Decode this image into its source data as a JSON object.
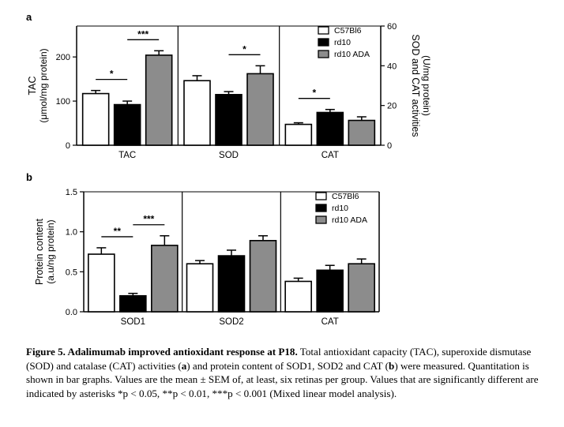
{
  "figure": {
    "panel_a_label": "a",
    "panel_b_label": "b"
  },
  "colors": {
    "C57Bl6": "#ffffff",
    "rd10": "#000000",
    "rd10 ADA": "#8c8c8c",
    "outline": "#000000"
  },
  "chart_data": [
    {
      "type": "bar",
      "panel": "a",
      "categories": [
        "TAC",
        "SOD",
        "CAT"
      ],
      "series": [
        {
          "name": "C57Bl6",
          "values": [
            117,
            32.5,
            10.5
          ],
          "errors": [
            7,
            2.5,
            0.8
          ]
        },
        {
          "name": "rd10",
          "values": [
            92,
            25.5,
            16.5
          ],
          "errors": [
            8,
            1.5,
            1.5
          ]
        },
        {
          "name": "rd10 ADA",
          "values": [
            204,
            36,
            12.5
          ],
          "errors": [
            10,
            4,
            1.8
          ]
        }
      ],
      "ylabel_left": "TAC",
      "ylabel_left_units": "(μmol/mg protein)",
      "ylim_left": [
        0,
        270
      ],
      "yticks_left": [
        "0",
        "100",
        "200"
      ],
      "ylabel_right": "SOD and CAT activities",
      "ylabel_right_units": "(U/mg protein)",
      "ylim_right": [
        0,
        60
      ],
      "yticks_right": [
        "0",
        "20",
        "40",
        "60"
      ],
      "right_axis_categories": [
        "SOD",
        "CAT"
      ],
      "significance": [
        {
          "category": "TAC",
          "from": "C57Bl6",
          "to": "rd10",
          "label": "*"
        },
        {
          "category": "TAC",
          "from": "rd10",
          "to": "rd10 ADA",
          "label": "***"
        },
        {
          "category": "SOD",
          "from": "rd10",
          "to": "rd10 ADA",
          "label": "*"
        },
        {
          "category": "CAT",
          "from": "C57Bl6",
          "to": "rd10",
          "label": "*"
        }
      ],
      "legend": "top-right",
      "grid": false
    },
    {
      "type": "bar",
      "panel": "b",
      "categories": [
        "SOD1",
        "SOD2",
        "CAT"
      ],
      "series": [
        {
          "name": "C57Bl6",
          "values": [
            0.72,
            0.6,
            0.38
          ],
          "errors": [
            0.08,
            0.04,
            0.04
          ]
        },
        {
          "name": "rd10",
          "values": [
            0.2,
            0.7,
            0.52
          ],
          "errors": [
            0.03,
            0.07,
            0.06
          ]
        },
        {
          "name": "rd10 ADA",
          "values": [
            0.83,
            0.89,
            0.6
          ],
          "errors": [
            0.12,
            0.06,
            0.06
          ]
        }
      ],
      "ylabel": "Protein content",
      "ylabel_units": "(a.u/ng protein)",
      "ylim": [
        0,
        1.5
      ],
      "yticks": [
        "0.0",
        "0.5",
        "1.0",
        "1.5"
      ],
      "significance": [
        {
          "category": "SOD1",
          "from": "C57Bl6",
          "to": "rd10",
          "label": "**"
        },
        {
          "category": "SOD1",
          "from": "rd10",
          "to": "rd10 ADA",
          "label": "***"
        }
      ],
      "legend": "top-right",
      "grid": false
    }
  ],
  "caption": {
    "title": "Figure 5.  Adalimumab improved antioxidant response at P18.",
    "text_1": " Total antioxidant capacity (TAC), superoxide dismutase (SOD) and catalase (CAT) activities (",
    "text_a": "a",
    "text_2": ") and protein content of SOD1, SOD2 and CAT (",
    "text_b": "b",
    "text_3": ") were measured. Quantitation is shown in bar graphs. Values are the mean ± SEM of, at least, six retinas per group. Values that are significantly different are indicated by asterisks *p < 0.05, **p < 0.01, ***p < 0.001 (Mixed linear model analysis)."
  }
}
